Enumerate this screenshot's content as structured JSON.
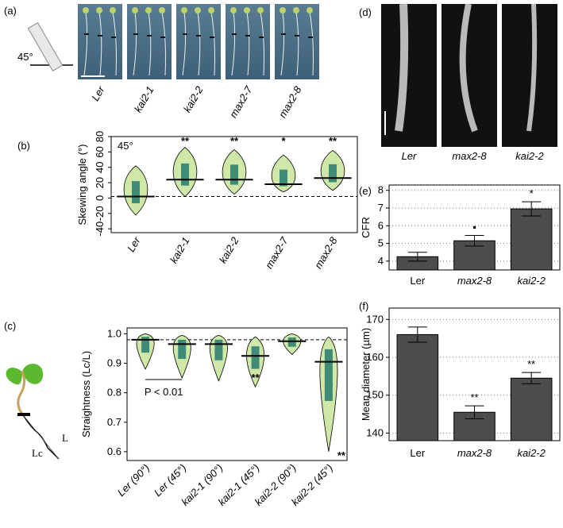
{
  "panel_a": {
    "label": "(a)",
    "angle": "45°",
    "genotypes": [
      "Ler",
      "kai2-1",
      "kai2-2",
      "max2-7",
      "max2-8"
    ]
  },
  "panel_d": {
    "label": "(d)",
    "genotypes": [
      "Ler",
      "max2-8",
      "kai2-2"
    ]
  },
  "chart_data": [
    {
      "type": "violin",
      "panel": "(b)",
      "ylabel": "Skewing angle (°)",
      "annotation": "45°",
      "categories": [
        "Ler",
        "kai2-1",
        "kai2-2",
        "max2-7",
        "max2-8"
      ],
      "values": [
        2,
        24,
        24,
        18,
        26
      ],
      "lows": [
        -22,
        2,
        5,
        8,
        10
      ],
      "highs": [
        42,
        66,
        63,
        56,
        62
      ],
      "significance": [
        null,
        "**",
        "**",
        "*",
        "**"
      ],
      "ylim": [
        -45,
        80
      ],
      "yticks": [
        -40,
        -20,
        0,
        20,
        40,
        60,
        80
      ],
      "color": "#cfe8a8"
    },
    {
      "type": "violin",
      "panel": "(c)",
      "ylabel": "Straightness (Lc/L)",
      "p_value": "P < 0.01",
      "diagram": {
        "lc": "Lc",
        "l": "L"
      },
      "categories": [
        "Ler (90°)",
        "Ler (45°)",
        "kai2-1 (90°)",
        "kai2-1 (45°)",
        "kai2-2 (90°)",
        "kai2-2 (45°)"
      ],
      "values": [
        0.98,
        0.965,
        0.965,
        0.925,
        0.975,
        0.905
      ],
      "lows": [
        0.88,
        0.85,
        0.84,
        0.82,
        0.93,
        0.6
      ],
      "highs": [
        1.0,
        0.995,
        0.995,
        0.99,
        1.0,
        0.99
      ],
      "significance": [
        null,
        null,
        null,
        "**",
        null,
        "**"
      ],
      "ylim": [
        0.57,
        1.02
      ],
      "yticks": [
        {
          "value": 0.6,
          "label": "0.6"
        },
        {
          "value": 0.7,
          "label": "0.7"
        },
        {
          "value": 0.8,
          "label": "0.8"
        },
        {
          "value": 0.9,
          "label": "0.9"
        },
        {
          "value": 1.0,
          "label": "1.0"
        }
      ],
      "color": "#cfe8a8"
    },
    {
      "type": "bar",
      "panel": "(e)",
      "ylabel": "CFR",
      "categories": [
        "Ler",
        "max2-8",
        "kai2-2"
      ],
      "values": [
        4.25,
        5.15,
        6.95
      ],
      "errors": [
        0.25,
        0.3,
        0.4
      ],
      "significance": [
        null,
        "▪",
        "*"
      ],
      "ylim": [
        3.5,
        8.3
      ],
      "yticks": [
        4,
        5,
        6,
        7,
        8
      ],
      "grid": true,
      "color": "#4d4d4d"
    },
    {
      "type": "bar",
      "panel": "(f)",
      "ylabel": "Mean diameter (µm)",
      "categories": [
        "Ler",
        "max2-8",
        "kai2-2"
      ],
      "values": [
        166,
        145.5,
        154.5
      ],
      "errors": [
        2,
        1.7,
        1.5
      ],
      "significance": [
        null,
        "**",
        "**"
      ],
      "ylim": [
        138,
        173
      ],
      "yticks": [
        140,
        150,
        160,
        170
      ],
      "grid": true,
      "color": "#4d4d4d"
    }
  ]
}
